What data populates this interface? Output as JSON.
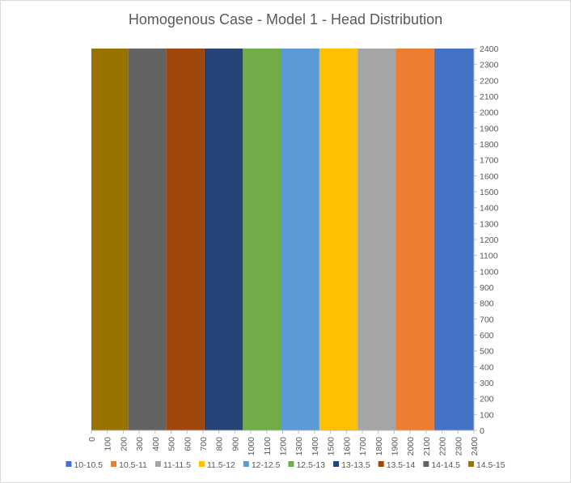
{
  "chart_data": {
    "type": "area",
    "title": "Homogenous Case - Model 1 - Head Distribution",
    "xlabel": "",
    "ylabel": "",
    "x_ticks": [
      0,
      100,
      200,
      300,
      400,
      500,
      600,
      700,
      800,
      900,
      1000,
      1100,
      1200,
      1300,
      1400,
      1500,
      1600,
      1700,
      1800,
      1900,
      2000,
      2100,
      2200,
      2300,
      2400
    ],
    "y_ticks": [
      0,
      100,
      200,
      300,
      400,
      500,
      600,
      700,
      800,
      900,
      1000,
      1100,
      1200,
      1300,
      1400,
      1500,
      1600,
      1700,
      1800,
      1900,
      2000,
      2100,
      2200,
      2300,
      2400
    ],
    "xlim": [
      0,
      2400
    ],
    "ylim": [
      0,
      2400
    ],
    "y_axis_side": "right",
    "grid": false,
    "legend_position": "bottom",
    "series": [
      {
        "name": "10-10.5",
        "color": "#4472C4",
        "x_range": [
          2150,
          2400
        ],
        "y_top": 2400
      },
      {
        "name": "10.5-11",
        "color": "#ED7D31",
        "x_range": [
          1910,
          2150
        ],
        "y_top": 2400
      },
      {
        "name": "11-11.5",
        "color": "#A5A5A5",
        "x_range": [
          1670,
          1910
        ],
        "y_top": 2400
      },
      {
        "name": "11.5-12",
        "color": "#FFC000",
        "x_range": [
          1430,
          1670
        ],
        "y_top": 2400
      },
      {
        "name": "12-12.5",
        "color": "#5B9BD5",
        "x_range": [
          1190,
          1430
        ],
        "y_top": 2400
      },
      {
        "name": "12.5-13",
        "color": "#70AD47",
        "x_range": [
          950,
          1190
        ],
        "y_top": 2400
      },
      {
        "name": "13-13.5",
        "color": "#264478",
        "x_range": [
          710,
          950
        ],
        "y_top": 2400
      },
      {
        "name": "13.5-14",
        "color": "#9E480E",
        "x_range": [
          470,
          710
        ],
        "y_top": 2400
      },
      {
        "name": "14-14.5",
        "color": "#636363",
        "x_range": [
          230,
          470
        ],
        "y_top": 2400
      },
      {
        "name": "14.5-15",
        "color": "#997300",
        "x_range": [
          -10,
          230
        ],
        "y_top": 2400
      }
    ]
  }
}
